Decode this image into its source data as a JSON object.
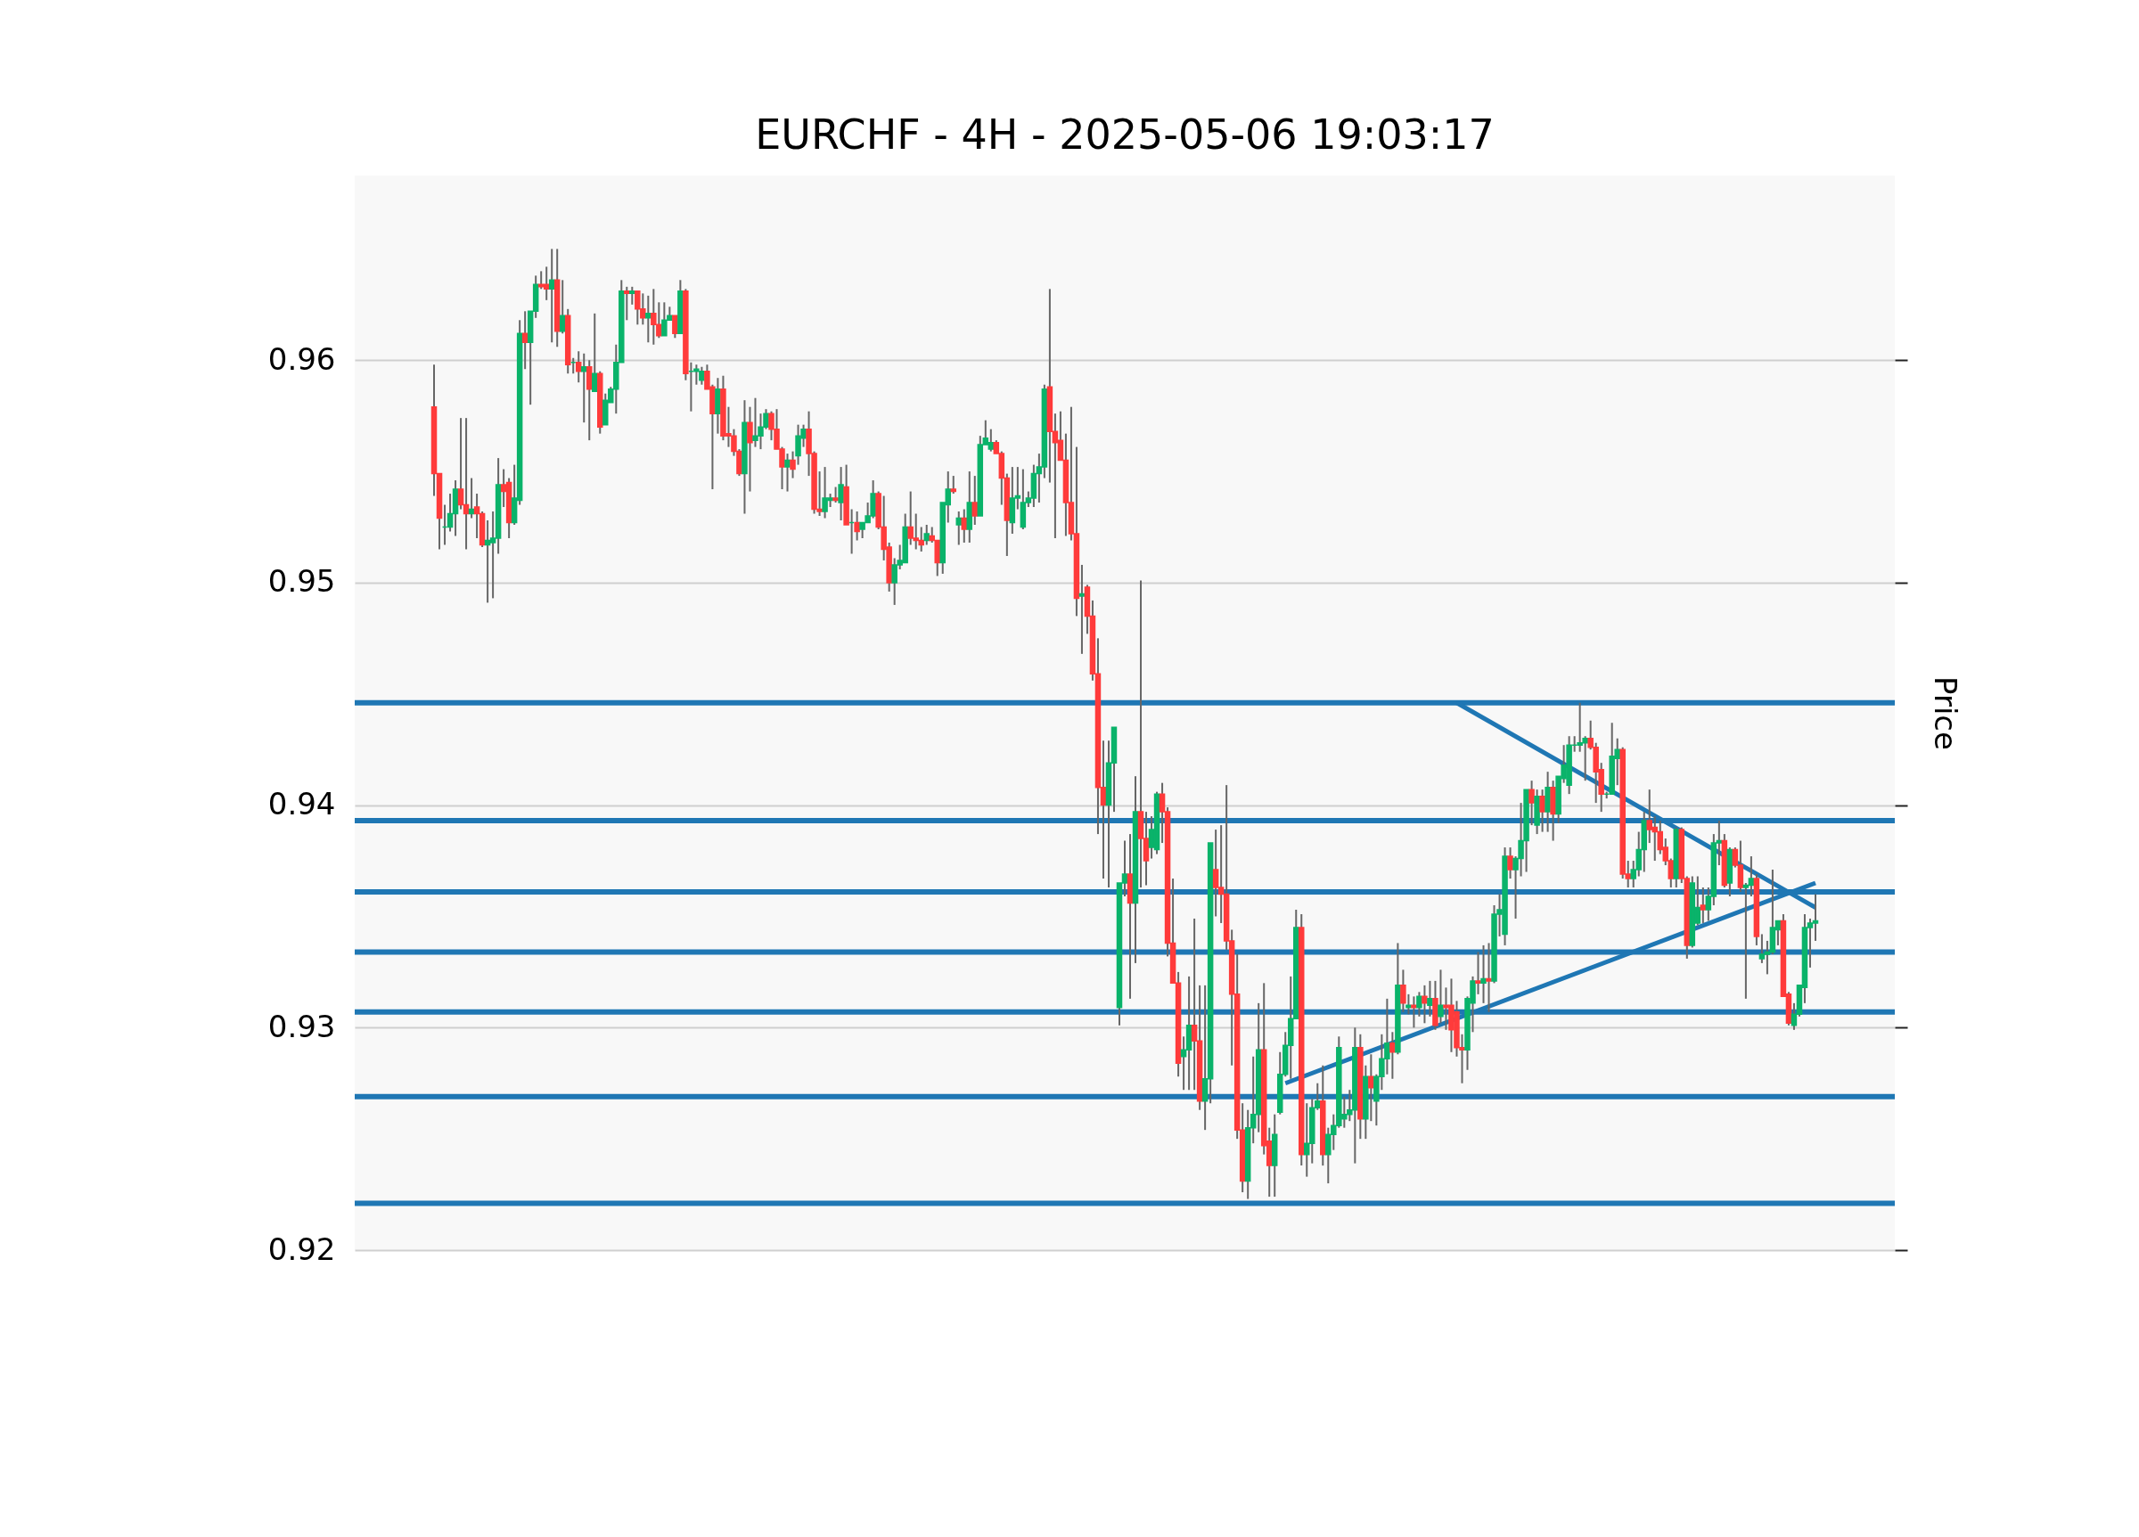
{
  "chart_data": {
    "type": "candlestick",
    "title": "EURCHF - 4H - 2025-05-06 19:03:17",
    "ylabel": "Price",
    "categories": [
      null,
      null,
      null,
      null,
      null,
      null,
      null,
      null,
      null,
      null,
      null,
      null,
      null,
      null,
      null,
      null,
      null,
      null,
      null,
      null,
      null,
      null,
      null,
      null,
      null,
      null,
      null,
      null,
      null,
      null,
      null,
      null,
      null,
      null,
      null,
      null,
      null,
      null,
      null,
      null,
      null,
      null,
      null,
      null,
      null,
      null,
      null,
      null,
      null,
      null,
      null,
      null,
      null,
      null,
      null,
      null,
      null,
      null,
      null,
      null,
      null,
      null,
      null,
      null,
      null,
      null,
      null,
      null,
      null,
      null,
      null,
      null,
      null,
      null,
      null,
      null,
      null,
      null,
      null,
      null,
      null,
      null,
      null,
      null,
      null,
      null,
      null,
      null,
      null,
      null,
      null,
      null,
      null,
      null,
      null,
      null,
      null,
      null,
      null,
      null,
      null,
      null,
      null,
      null,
      null,
      null,
      null,
      null,
      null,
      null,
      null,
      null,
      null,
      null,
      null,
      null,
      null,
      null,
      null,
      null,
      null,
      null,
      null,
      null,
      null,
      null,
      null,
      null,
      null,
      null,
      null,
      null,
      null,
      null,
      null,
      null,
      null,
      null,
      null,
      null,
      null,
      null,
      null,
      null,
      null,
      null,
      null,
      null,
      null,
      null,
      null,
      null,
      null,
      null,
      null,
      null,
      null,
      null,
      null,
      null,
      null,
      null,
      null,
      null,
      null,
      null,
      null,
      null,
      null,
      null,
      null,
      null,
      null,
      null,
      null,
      null,
      null,
      null,
      null,
      null,
      null,
      null,
      null,
      null,
      null,
      null,
      null,
      null,
      null,
      null,
      null,
      null,
      null,
      null,
      null,
      null,
      null,
      null,
      null,
      null,
      null,
      null,
      null,
      null,
      null,
      null,
      null,
      null,
      null,
      null,
      null,
      null,
      null,
      null,
      null,
      null,
      null,
      null,
      null,
      null,
      null,
      null,
      null,
      null,
      null,
      null,
      null,
      null,
      null,
      null,
      null,
      null,
      null,
      null,
      null,
      null,
      null,
      null,
      null,
      null,
      null,
      null,
      null,
      null,
      null,
      null,
      null,
      null,
      null,
      null,
      null,
      null,
      null,
      null,
      null,
      null,
      null,
      null,
      null
    ],
    "ohlc": [
      [
        0.9579,
        0.9598,
        0.9539,
        0.9549
      ],
      [
        0.9549,
        0.9549,
        0.9515,
        0.9529
      ],
      [
        0.9525,
        0.9535,
        0.9517,
        0.9525
      ],
      [
        0.9525,
        0.954,
        0.9523,
        0.9531
      ],
      [
        0.9531,
        0.9546,
        0.9521,
        0.9542
      ],
      [
        0.9542,
        0.9574,
        0.9533,
        0.9535
      ],
      [
        0.9535,
        0.9574,
        0.9515,
        0.9531
      ],
      [
        0.9531,
        0.9547,
        0.9529,
        0.9533
      ],
      [
        0.9534,
        0.954,
        0.952,
        0.9531
      ],
      [
        0.9531,
        0.9532,
        0.9516,
        0.9517
      ],
      [
        0.9517,
        0.9528,
        0.9491,
        0.9519
      ],
      [
        0.9518,
        0.9532,
        0.9493,
        0.952
      ],
      [
        0.952,
        0.9556,
        0.9513,
        0.9544
      ],
      [
        0.9544,
        0.9551,
        0.9534,
        0.9541
      ],
      [
        0.9545,
        0.9547,
        0.952,
        0.9527
      ],
      [
        0.9527,
        0.9553,
        0.9526,
        0.9538
      ],
      [
        0.9537,
        0.9618,
        0.9535,
        0.9612
      ],
      [
        0.9612,
        0.9622,
        0.9596,
        0.9608
      ],
      [
        0.9608,
        0.9622,
        0.958,
        0.9622
      ],
      [
        0.9622,
        0.9638,
        0.9619,
        0.9634
      ],
      [
        0.9634,
        0.964,
        0.9632,
        0.9633
      ],
      [
        0.9634,
        0.9642,
        0.9627,
        0.9632
      ],
      [
        0.9632,
        0.965,
        0.9608,
        0.9636
      ],
      [
        0.9636,
        0.965,
        0.9606,
        0.9613
      ],
      [
        0.9613,
        0.9636,
        0.9612,
        0.962
      ],
      [
        0.962,
        0.9623,
        0.9594,
        0.9598
      ],
      [
        0.9599,
        0.9601,
        0.9594,
        0.9599
      ],
      [
        0.9599,
        0.9604,
        0.959,
        0.9595
      ],
      [
        0.9595,
        0.9603,
        0.9572,
        0.9597
      ],
      [
        0.9597,
        0.96,
        0.9564,
        0.9587
      ],
      [
        0.9586,
        0.9621,
        0.9586,
        0.9594
      ],
      [
        0.9594,
        0.9595,
        0.9567,
        0.957
      ],
      [
        0.9571,
        0.9585,
        0.9571,
        0.9582
      ],
      [
        0.9581,
        0.9588,
        0.9581,
        0.9587
      ],
      [
        0.9587,
        0.9607,
        0.9576,
        0.9599
      ],
      [
        0.9599,
        0.9636,
        0.9599,
        0.9631
      ],
      [
        0.9631,
        0.9633,
        0.9618,
        0.963
      ],
      [
        0.963,
        0.9633,
        0.9625,
        0.9631
      ],
      [
        0.9631,
        0.9631,
        0.9616,
        0.9623
      ],
      [
        0.9623,
        0.963,
        0.9616,
        0.9619
      ],
      [
        0.9619,
        0.9629,
        0.9608,
        0.9621
      ],
      [
        0.9621,
        0.9632,
        0.9607,
        0.9616
      ],
      [
        0.9616,
        0.9626,
        0.961,
        0.9611
      ],
      [
        0.9611,
        0.9626,
        0.9611,
        0.9618
      ],
      [
        0.9618,
        0.9624,
        0.9618,
        0.962
      ],
      [
        0.962,
        0.962,
        0.961,
        0.9612
      ],
      [
        0.9612,
        0.9636,
        0.9612,
        0.9631
      ],
      [
        0.9631,
        0.9632,
        0.9591,
        0.9594
      ],
      [
        0.9595,
        0.9599,
        0.9577,
        0.9595
      ],
      [
        0.9595,
        0.9598,
        0.9589,
        0.9596
      ],
      [
        0.9591,
        0.9597,
        0.9589,
        0.9595
      ],
      [
        0.9595,
        0.9598,
        0.9587,
        0.9587
      ],
      [
        0.9588,
        0.9589,
        0.9542,
        0.9576
      ],
      [
        0.9576,
        0.9592,
        0.9567,
        0.9587
      ],
      [
        0.9587,
        0.9593,
        0.9564,
        0.9566
      ],
      [
        0.9567,
        0.9579,
        0.9561,
        0.9566
      ],
      [
        0.9566,
        0.9569,
        0.9557,
        0.9559
      ],
      [
        0.9559,
        0.956,
        0.9548,
        0.9549
      ],
      [
        0.9549,
        0.9582,
        0.9531,
        0.9572
      ],
      [
        0.9572,
        0.9579,
        0.9541,
        0.9563
      ],
      [
        0.9564,
        0.9583,
        0.9561,
        0.9566
      ],
      [
        0.9566,
        0.9576,
        0.956,
        0.957
      ],
      [
        0.957,
        0.9578,
        0.9569,
        0.9576
      ],
      [
        0.9576,
        0.9577,
        0.9564,
        0.9569
      ],
      [
        0.9569,
        0.9578,
        0.956,
        0.956
      ],
      [
        0.956,
        0.9561,
        0.9542,
        0.9552
      ],
      [
        0.9552,
        0.9558,
        0.9541,
        0.9555
      ],
      [
        0.9555,
        0.9559,
        0.9547,
        0.9551
      ],
      [
        0.9557,
        0.9571,
        0.9553,
        0.9566
      ],
      [
        0.9565,
        0.9571,
        0.9561,
        0.9569
      ],
      [
        0.9569,
        0.9577,
        0.9548,
        0.9558
      ],
      [
        0.9558,
        0.9559,
        0.9531,
        0.9533
      ],
      [
        0.9533,
        0.955,
        0.953,
        0.9532
      ],
      [
        0.9532,
        0.9552,
        0.9529,
        0.9538
      ],
      [
        0.9537,
        0.954,
        0.9534,
        0.9538
      ],
      [
        0.9538,
        0.9543,
        0.9536,
        0.9537
      ],
      [
        0.9536,
        0.9552,
        0.9528,
        0.9544
      ],
      [
        0.9543,
        0.9553,
        0.9526,
        0.9526
      ],
      [
        0.9527,
        0.9533,
        0.9513,
        0.9527
      ],
      [
        0.9527,
        0.9532,
        0.9519,
        0.9523
      ],
      [
        0.9524,
        0.9527,
        0.952,
        0.9527
      ],
      [
        0.9527,
        0.9536,
        0.9527,
        0.953
      ],
      [
        0.953,
        0.9546,
        0.9529,
        0.954
      ],
      [
        0.954,
        0.9541,
        0.9524,
        0.9525
      ],
      [
        0.9525,
        0.9539,
        0.951,
        0.9515
      ],
      [
        0.9516,
        0.9518,
        0.9496,
        0.95
      ],
      [
        0.95,
        0.9511,
        0.949,
        0.9508
      ],
      [
        0.9508,
        0.9517,
        0.9506,
        0.951
      ],
      [
        0.9509,
        0.9531,
        0.9509,
        0.9525
      ],
      [
        0.9525,
        0.9541,
        0.9517,
        0.952
      ],
      [
        0.952,
        0.9531,
        0.9515,
        0.9519
      ],
      [
        0.9519,
        0.9525,
        0.9514,
        0.9517
      ],
      [
        0.9519,
        0.9526,
        0.9517,
        0.9522
      ],
      [
        0.9521,
        0.9525,
        0.9518,
        0.9519
      ],
      [
        0.9519,
        0.9519,
        0.9503,
        0.9509
      ],
      [
        0.9509,
        0.9536,
        0.9504,
        0.9536
      ],
      [
        0.9535,
        0.955,
        0.9527,
        0.9542
      ],
      [
        0.9542,
        0.9548,
        0.954,
        0.9541
      ],
      [
        0.9526,
        0.9532,
        0.9517,
        0.9529
      ],
      [
        0.9529,
        0.9533,
        0.9518,
        0.9524
      ],
      [
        0.9524,
        0.955,
        0.9518,
        0.9536
      ],
      [
        0.9536,
        0.9548,
        0.9526,
        0.953
      ],
      [
        0.953,
        0.9566,
        0.953,
        0.9562
      ],
      [
        0.9562,
        0.9573,
        0.9562,
        0.9565
      ],
      [
        0.956,
        0.9569,
        0.9559,
        0.9563
      ],
      [
        0.9563,
        0.9564,
        0.9558,
        0.9558
      ],
      [
        0.9558,
        0.9559,
        0.9535,
        0.9547
      ],
      [
        0.9547,
        0.9549,
        0.9512,
        0.9528
      ],
      [
        0.9527,
        0.9552,
        0.9522,
        0.9538
      ],
      [
        0.9538,
        0.9552,
        0.9533,
        0.9539
      ],
      [
        0.9525,
        0.9551,
        0.9524,
        0.9536
      ],
      [
        0.9536,
        0.9541,
        0.9534,
        0.9538
      ],
      [
        0.9538,
        0.9553,
        0.9534,
        0.9549
      ],
      [
        0.9549,
        0.9558,
        0.9536,
        0.9552
      ],
      [
        0.9552,
        0.9589,
        0.9547,
        0.9587
      ],
      [
        0.9588,
        0.9632,
        0.9545,
        0.9568
      ],
      [
        0.9568,
        0.9576,
        0.952,
        0.9563
      ],
      [
        0.9564,
        0.9577,
        0.9555,
        0.9555
      ],
      [
        0.9555,
        0.9567,
        0.9521,
        0.9536
      ],
      [
        0.9536,
        0.9579,
        0.9519,
        0.9522
      ],
      [
        0.9522,
        0.9561,
        0.9485,
        0.9493
      ],
      [
        0.9494,
        0.9508,
        0.9468,
        0.9495
      ],
      [
        0.9498,
        0.9499,
        0.9477,
        0.9485
      ],
      [
        0.9485,
        0.9492,
        0.9456,
        0.9459
      ],
      [
        0.9459,
        0.9475,
        0.9387,
        0.9408
      ],
      [
        0.9408,
        0.9429,
        0.9367,
        0.94
      ],
      [
        0.94,
        0.9429,
        0.9363,
        0.9419
      ],
      [
        0.9419,
        0.9435,
        0.9397,
        0.9435
      ],
      [
        0.9309,
        0.9365,
        0.9301,
        0.9365
      ],
      [
        0.9365,
        0.9384,
        0.9359,
        0.9369
      ],
      [
        0.9369,
        0.9387,
        0.9313,
        0.9356
      ],
      [
        0.9356,
        0.9413,
        0.9329,
        0.9397
      ],
      [
        0.9397,
        0.9501,
        0.9363,
        0.9385
      ],
      [
        0.9385,
        0.9397,
        0.9364,
        0.9375
      ],
      [
        0.9381,
        0.9395,
        0.9376,
        0.9389
      ],
      [
        0.938,
        0.9406,
        0.9378,
        0.9405
      ],
      [
        0.9405,
        0.941,
        0.9383,
        0.9397
      ],
      [
        0.9397,
        0.9399,
        0.9332,
        0.9338
      ],
      [
        0.9338,
        0.9367,
        0.932,
        0.932
      ],
      [
        0.932,
        0.9325,
        0.9278,
        0.9284
      ],
      [
        0.9287,
        0.9296,
        0.9272,
        0.929
      ],
      [
        0.929,
        0.9323,
        0.9272,
        0.9301
      ],
      [
        0.9301,
        0.9349,
        0.9272,
        0.9294
      ],
      [
        0.9294,
        0.9319,
        0.9263,
        0.9267
      ],
      [
        0.9267,
        0.9319,
        0.9254,
        0.9277
      ],
      [
        0.9277,
        0.9383,
        0.9266,
        0.9383
      ],
      [
        0.9371,
        0.9389,
        0.935,
        0.9363
      ],
      [
        0.9363,
        0.9391,
        0.9347,
        0.936
      ],
      [
        0.936,
        0.9409,
        0.9335,
        0.9339
      ],
      [
        0.9339,
        0.9344,
        0.9283,
        0.9315
      ],
      [
        0.9315,
        0.9333,
        0.925,
        0.9254
      ],
      [
        0.9254,
        0.9266,
        0.9226,
        0.9231
      ],
      [
        0.9231,
        0.9263,
        0.9223,
        0.9255
      ],
      [
        0.9255,
        0.9287,
        0.9248,
        0.9261
      ],
      [
        0.9261,
        0.9311,
        0.9253,
        0.929
      ],
      [
        0.929,
        0.932,
        0.9243,
        0.9247
      ],
      [
        0.9249,
        0.9255,
        0.9224,
        0.9238
      ],
      [
        0.9238,
        0.9261,
        0.9224,
        0.9252
      ],
      [
        0.9262,
        0.9289,
        0.9261,
        0.9279
      ],
      [
        0.9279,
        0.9298,
        0.9278,
        0.9292
      ],
      [
        0.9292,
        0.9323,
        0.9277,
        0.9304
      ],
      [
        0.9304,
        0.9353,
        0.9304,
        0.9345
      ],
      [
        0.9345,
        0.9351,
        0.9238,
        0.9243
      ],
      [
        0.9243,
        0.9266,
        0.9233,
        0.9248
      ],
      [
        0.9248,
        0.9268,
        0.9239,
        0.9264
      ],
      [
        0.9264,
        0.9275,
        0.9263,
        0.9267
      ],
      [
        0.9267,
        0.9283,
        0.9238,
        0.9243
      ],
      [
        0.9243,
        0.9255,
        0.923,
        0.9252
      ],
      [
        0.9252,
        0.9261,
        0.9245,
        0.9256
      ],
      [
        0.9256,
        0.9296,
        0.9255,
        0.9291
      ],
      [
        0.9259,
        0.9269,
        0.9255,
        0.9261
      ],
      [
        0.9261,
        0.9272,
        0.9258,
        0.9263
      ],
      [
        0.9263,
        0.93,
        0.9239,
        0.9291
      ],
      [
        0.9291,
        0.9297,
        0.925,
        0.9259
      ],
      [
        0.9259,
        0.9283,
        0.925,
        0.9278
      ],
      [
        0.9278,
        0.9288,
        0.9258,
        0.9273
      ],
      [
        0.9267,
        0.9279,
        0.9256,
        0.9278
      ],
      [
        0.9278,
        0.9297,
        0.9272,
        0.9286
      ],
      [
        0.9286,
        0.9313,
        0.9279,
        0.9293
      ],
      [
        0.9293,
        0.9298,
        0.9277,
        0.9289
      ],
      [
        0.9289,
        0.9338,
        0.9288,
        0.9319
      ],
      [
        0.9319,
        0.9326,
        0.9307,
        0.9311
      ],
      [
        0.9309,
        0.9315,
        0.9306,
        0.931
      ],
      [
        0.931,
        0.9314,
        0.93,
        0.9309
      ],
      [
        0.9309,
        0.9316,
        0.9305,
        0.9314
      ],
      [
        0.9314,
        0.9319,
        0.9302,
        0.9311
      ],
      [
        0.931,
        0.9321,
        0.9305,
        0.9313
      ],
      [
        0.9313,
        0.9321,
        0.9299,
        0.9301
      ],
      [
        0.9305,
        0.9326,
        0.9302,
        0.931
      ],
      [
        0.931,
        0.9318,
        0.9299,
        0.9309
      ],
      [
        0.931,
        0.9322,
        0.9289,
        0.9299
      ],
      [
        0.9307,
        0.9312,
        0.9287,
        0.9291
      ],
      [
        0.9291,
        0.9297,
        0.9275,
        0.929
      ],
      [
        0.929,
        0.9314,
        0.9281,
        0.9313
      ],
      [
        0.9311,
        0.9323,
        0.9298,
        0.9321
      ],
      [
        0.9321,
        0.9334,
        0.9315,
        0.932
      ],
      [
        0.932,
        0.9337,
        0.9311,
        0.9322
      ],
      [
        0.9322,
        0.9338,
        0.9307,
        0.9321
      ],
      [
        0.9321,
        0.9355,
        0.932,
        0.9351
      ],
      [
        0.9351,
        0.936,
        0.9341,
        0.9353
      ],
      [
        0.9342,
        0.9381,
        0.9337,
        0.9377
      ],
      [
        0.9377,
        0.9381,
        0.9367,
        0.9371
      ],
      [
        0.9371,
        0.9377,
        0.9349,
        0.9376
      ],
      [
        0.9376,
        0.9401,
        0.9368,
        0.9384
      ],
      [
        0.9384,
        0.9407,
        0.937,
        0.9407
      ],
      [
        0.9407,
        0.9411,
        0.9391,
        0.9401
      ],
      [
        0.9391,
        0.9407,
        0.9387,
        0.9404
      ],
      [
        0.9404,
        0.9407,
        0.9388,
        0.9397
      ],
      [
        0.9397,
        0.9415,
        0.9388,
        0.9408
      ],
      [
        0.9408,
        0.9411,
        0.9384,
        0.9396
      ],
      [
        0.9396,
        0.9413,
        0.9392,
        0.9413
      ],
      [
        0.9412,
        0.9427,
        0.941,
        0.9418
      ],
      [
        0.9409,
        0.9431,
        0.9405,
        0.9427
      ],
      [
        0.9427,
        0.9431,
        0.9424,
        0.9427
      ],
      [
        0.9427,
        0.9446,
        0.9424,
        0.9428
      ],
      [
        0.9428,
        0.9431,
        0.9411,
        0.943
      ],
      [
        0.943,
        0.9438,
        0.9425,
        0.9426
      ],
      [
        0.9426,
        0.9428,
        0.9401,
        0.9415
      ],
      [
        0.9416,
        0.9419,
        0.9397,
        0.9405
      ],
      [
        0.9405,
        0.9406,
        0.9403,
        0.9405
      ],
      [
        0.9405,
        0.9437,
        0.9405,
        0.9422
      ],
      [
        0.9421,
        0.943,
        0.9409,
        0.9425
      ],
      [
        0.9425,
        0.9426,
        0.9367,
        0.9369
      ],
      [
        0.9369,
        0.9375,
        0.9363,
        0.9367
      ],
      [
        0.9367,
        0.9375,
        0.9363,
        0.9371
      ],
      [
        0.9371,
        0.9388,
        0.9368,
        0.938
      ],
      [
        0.938,
        0.9397,
        0.937,
        0.9393
      ],
      [
        0.9393,
        0.9407,
        0.9383,
        0.9389
      ],
      [
        0.939,
        0.9395,
        0.9375,
        0.9388
      ],
      [
        0.9388,
        0.9393,
        0.9378,
        0.938
      ],
      [
        0.9381,
        0.9385,
        0.9373,
        0.9375
      ],
      [
        0.9375,
        0.9376,
        0.9363,
        0.9367
      ],
      [
        0.9367,
        0.939,
        0.9363,
        0.9389
      ],
      [
        0.9389,
        0.939,
        0.9365,
        0.9367
      ],
      [
        0.9367,
        0.9368,
        0.9331,
        0.9337
      ],
      [
        0.9337,
        0.9368,
        0.9336,
        0.9365
      ],
      [
        0.9347,
        0.9368,
        0.9346,
        0.9354
      ],
      [
        0.9355,
        0.9363,
        0.9347,
        0.9353
      ],
      [
        0.9353,
        0.9363,
        0.9348,
        0.9359
      ],
      [
        0.9359,
        0.9387,
        0.9355,
        0.9383
      ],
      [
        0.9383,
        0.9393,
        0.9373,
        0.9384
      ],
      [
        0.9384,
        0.9387,
        0.9363,
        0.9364
      ],
      [
        0.9365,
        0.9381,
        0.9359,
        0.938
      ],
      [
        0.938,
        0.9381,
        0.9372,
        0.9373
      ],
      [
        0.9373,
        0.9384,
        0.9361,
        0.9363
      ],
      [
        0.9363,
        0.9365,
        0.9313,
        0.9364
      ],
      [
        0.9364,
        0.9377,
        0.9359,
        0.9367
      ],
      [
        0.9367,
        0.9369,
        0.9337,
        0.9341
      ],
      [
        0.9331,
        0.9342,
        0.9329,
        0.9333
      ],
      [
        0.9333,
        0.9339,
        0.9324,
        0.9334
      ],
      [
        0.9334,
        0.9371,
        0.9333,
        0.9345
      ],
      [
        0.9344,
        0.9348,
        0.9337,
        0.9348
      ],
      [
        0.9348,
        0.9351,
        0.9314,
        0.9314
      ],
      [
        0.9315,
        0.9316,
        0.9301,
        0.9302
      ],
      [
        0.9301,
        0.9311,
        0.9299,
        0.9306
      ],
      [
        0.9306,
        0.9319,
        0.9305,
        0.9319
      ],
      [
        0.9318,
        0.9351,
        0.9311,
        0.9345
      ],
      [
        0.9345,
        0.9349,
        0.9327,
        0.9347
      ],
      [
        0.9347,
        0.936,
        0.9339,
        0.9348
      ]
    ],
    "colors": [
      "#ff3b3b",
      "#ff3b3b",
      "#0ab36a",
      "#0ab36a",
      "#0ab36a",
      "#ff3b3b",
      "#ff3b3b",
      "#0ab36a",
      "#ff3b3b",
      "#ff3b3b",
      "#0ab36a",
      "#0ab36a",
      "#0ab36a",
      "#ff3b3b",
      "#ff3b3b",
      "#0ab36a",
      "#0ab36a",
      "#ff3b3b",
      "#0ab36a",
      "#0ab36a",
      "#ff3b3b",
      "#ff3b3b",
      "#0ab36a",
      "#ff3b3b",
      "#0ab36a",
      "#ff3b3b",
      "#0ab36a",
      "#ff3b3b",
      "#0ab36a",
      "#ff3b3b",
      "#0ab36a",
      "#ff3b3b",
      "#0ab36a",
      "#0ab36a",
      "#0ab36a",
      "#0ab36a",
      "#ff3b3b",
      "#0ab36a",
      "#ff3b3b",
      "#ff3b3b",
      "#0ab36a",
      "#ff3b3b",
      "#ff3b3b",
      "#0ab36a",
      "#0ab36a",
      "#ff3b3b",
      "#0ab36a",
      "#ff3b3b",
      "#0ab36a",
      "#0ab36a",
      "#0ab36a",
      "#ff3b3b",
      "#ff3b3b",
      "#0ab36a",
      "#ff3b3b",
      "#ff3b3b",
      "#ff3b3b",
      "#ff3b3b",
      "#0ab36a",
      "#ff3b3b",
      "#0ab36a",
      "#0ab36a",
      "#0ab36a",
      "#ff3b3b",
      "#ff3b3b",
      "#ff3b3b",
      "#0ab36a",
      "#ff3b3b",
      "#0ab36a",
      "#0ab36a",
      "#ff3b3b",
      "#ff3b3b",
      "#ff3b3b",
      "#0ab36a",
      "#0ab36a",
      "#ff3b3b",
      "#0ab36a",
      "#ff3b3b",
      "#0ab36a",
      "#ff3b3b",
      "#0ab36a",
      "#0ab36a",
      "#0ab36a",
      "#ff3b3b",
      "#ff3b3b",
      "#ff3b3b",
      "#0ab36a",
      "#0ab36a",
      "#0ab36a",
      "#ff3b3b",
      "#ff3b3b",
      "#ff3b3b",
      "#0ab36a",
      "#ff3b3b",
      "#ff3b3b",
      "#0ab36a",
      "#0ab36a",
      "#ff3b3b",
      "#0ab36a",
      "#ff3b3b",
      "#0ab36a",
      "#ff3b3b",
      "#0ab36a",
      "#0ab36a",
      "#0ab36a",
      "#ff3b3b",
      "#ff3b3b",
      "#ff3b3b",
      "#0ab36a",
      "#0ab36a",
      "#0ab36a",
      "#0ab36a",
      "#0ab36a",
      "#0ab36a",
      "#0ab36a",
      "#ff3b3b",
      "#ff3b3b",
      "#ff3b3b",
      "#ff3b3b",
      "#ff3b3b",
      "#ff3b3b",
      "#0ab36a",
      "#ff3b3b",
      "#ff3b3b",
      "#ff3b3b",
      "#ff3b3b",
      "#0ab36a",
      "#0ab36a",
      "#0ab36a",
      "#0ab36a",
      "#ff3b3b",
      "#0ab36a",
      "#ff3b3b",
      "#ff3b3b",
      "#0ab36a",
      "#0ab36a",
      "#ff3b3b",
      "#ff3b3b",
      "#ff3b3b",
      "#ff3b3b",
      "#0ab36a",
      "#0ab36a",
      "#ff3b3b",
      "#ff3b3b",
      "#0ab36a",
      "#0ab36a",
      "#ff3b3b",
      "#ff3b3b",
      "#ff3b3b",
      "#ff3b3b",
      "#ff3b3b",
      "#ff3b3b",
      "#0ab36a",
      "#0ab36a",
      "#0ab36a",
      "#ff3b3b",
      "#ff3b3b",
      "#0ab36a",
      "#0ab36a",
      "#0ab36a",
      "#0ab36a",
      "#0ab36a",
      "#ff3b3b",
      "#0ab36a",
      "#0ab36a",
      "#0ab36a",
      "#ff3b3b",
      "#0ab36a",
      "#0ab36a",
      "#0ab36a",
      "#0ab36a",
      "#0ab36a",
      "#0ab36a",
      "#ff3b3b",
      "#0ab36a",
      "#ff3b3b",
      "#0ab36a",
      "#0ab36a",
      "#0ab36a",
      "#ff3b3b",
      "#0ab36a",
      "#ff3b3b",
      "#0ab36a",
      "#ff3b3b",
      "#0ab36a",
      "#ff3b3b",
      "#0ab36a",
      "#ff3b3b",
      "#0ab36a",
      "#ff3b3b",
      "#ff3b3b",
      "#ff3b3b",
      "#ff3b3b",
      "#0ab36a",
      "#0ab36a",
      "#ff3b3b",
      "#0ab36a",
      "#ff3b3b",
      "#0ab36a",
      "#0ab36a",
      "#0ab36a",
      "#ff3b3b",
      "#0ab36a",
      "#0ab36a",
      "#0ab36a",
      "#ff3b3b",
      "#0ab36a",
      "#ff3b3b",
      "#0ab36a",
      "#ff3b3b",
      "#0ab36a",
      "#0ab36a",
      "#0ab36a",
      "#0ab36a",
      "#0ab36a",
      "#0ab36a",
      "#ff3b3b",
      "#ff3b3b",
      "#ff3b3b",
      "#0ab36a",
      "#0ab36a",
      "#0ab36a",
      "#ff3b3b",
      "#ff3b3b",
      "#0ab36a",
      "#0ab36a",
      "#0ab36a",
      "#ff3b3b",
      "#ff3b3b",
      "#ff3b3b",
      "#ff3b3b",
      "#ff3b3b",
      "#0ab36a",
      "#ff3b3b",
      "#ff3b3b",
      "#0ab36a",
      "#0ab36a",
      "#ff3b3b",
      "#0ab36a",
      "#0ab36a",
      "#0ab36a",
      "#ff3b3b",
      "#0ab36a",
      "#ff3b3b",
      "#ff3b3b",
      "#0ab36a",
      "#0ab36a",
      "#ff3b3b",
      "#0ab36a",
      "#0ab36a",
      "#0ab36a",
      "#0ab36a",
      "#ff3b3b",
      "#ff3b3b",
      "#0ab36a",
      "#0ab36a",
      "#0ab36a",
      "#0ab36a",
      "#0ab36a"
    ],
    "series": [
      {
        "type": "line",
        "color": "#1f77b4",
        "values": [
          null,
          null,
          null,
          null,
          null,
          null,
          null,
          null,
          null,
          null,
          null,
          null,
          null,
          null,
          null,
          null,
          null,
          null,
          null,
          null,
          null,
          null,
          null,
          null,
          null,
          null,
          null,
          null,
          null,
          null,
          null,
          null,
          null,
          null,
          null,
          null,
          null,
          null,
          null,
          null,
          null,
          null,
          null,
          null,
          null,
          null,
          null,
          null,
          null,
          null,
          null,
          null,
          null,
          null,
          null,
          null,
          null,
          null,
          null,
          null,
          null,
          null,
          null,
          null,
          null,
          null,
          null,
          null,
          null,
          null,
          null,
          null,
          null,
          null,
          null,
          null,
          null,
          null,
          null,
          null,
          null,
          null,
          null,
          null,
          null,
          null,
          null,
          null,
          null,
          null,
          null,
          null,
          null,
          null,
          null,
          null,
          null,
          null,
          null,
          null,
          null,
          null,
          null,
          null,
          null,
          null,
          null,
          null,
          null,
          null,
          null,
          null,
          null,
          null,
          null,
          null,
          null,
          null,
          null,
          null,
          null,
          null,
          null,
          null,
          null,
          null,
          null,
          null,
          null,
          null,
          null,
          null,
          null,
          null,
          null,
          null,
          null,
          null,
          null,
          null,
          null,
          null,
          null,
          null,
          null,
          null,
          null,
          null,
          null,
          null,
          null,
          null,
          null,
          null,
          null,
          null,
          null,
          null,
          null,
          null,
          null,
          null,
          null,
          null,
          null,
          null,
          null,
          null,
          null,
          null,
          null,
          null,
          null,
          null,
          null,
          null,
          null,
          null,
          null,
          null,
          null,
          null,
          null,
          null,
          null,
          null,
          null,
          null,
          null,
          null,
          null,
          0.9446,
          null,
          null,
          null,
          null,
          null,
          null,
          null,
          null,
          null,
          null,
          null,
          null,
          null,
          null,
          null,
          null,
          null,
          null,
          null,
          null,
          null,
          null,
          null,
          null,
          null,
          null,
          null,
          null,
          null,
          null,
          null,
          null,
          null,
          null,
          null,
          null,
          null,
          null,
          null,
          null,
          null,
          null,
          null,
          null,
          null,
          null,
          null,
          null,
          null,
          null,
          null,
          null,
          null,
          null,
          null,
          null,
          null,
          null,
          null,
          null,
          null,
          null,
          null,
          null,
          null,
          null,
          0.9354
        ]
      },
      {
        "type": "line",
        "color": "#1f77b4",
        "values": [
          null,
          null,
          null,
          null,
          null,
          null,
          null,
          null,
          null,
          null,
          null,
          null,
          null,
          null,
          null,
          null,
          null,
          null,
          null,
          null,
          null,
          null,
          null,
          null,
          null,
          null,
          null,
          null,
          null,
          null,
          null,
          null,
          null,
          null,
          null,
          null,
          null,
          null,
          null,
          null,
          null,
          null,
          null,
          null,
          null,
          null,
          null,
          null,
          null,
          null,
          null,
          null,
          null,
          null,
          null,
          null,
          null,
          null,
          null,
          null,
          null,
          null,
          null,
          null,
          null,
          null,
          null,
          null,
          null,
          null,
          null,
          null,
          null,
          null,
          null,
          null,
          null,
          null,
          null,
          null,
          null,
          null,
          null,
          null,
          null,
          null,
          null,
          null,
          null,
          null,
          null,
          null,
          null,
          null,
          null,
          null,
          null,
          null,
          null,
          null,
          null,
          null,
          null,
          null,
          null,
          null,
          null,
          null,
          null,
          null,
          null,
          null,
          null,
          null,
          null,
          null,
          null,
          null,
          null,
          null,
          null,
          null,
          null,
          null,
          null,
          null,
          null,
          null,
          null,
          null,
          null,
          null,
          null,
          null,
          null,
          null,
          null,
          null,
          null,
          null,
          null,
          null,
          null,
          null,
          null,
          null,
          null,
          null,
          null,
          null,
          null,
          null,
          null,
          null,
          null,
          null,
          null,
          null,
          null,
          0.9275,
          null,
          null,
          null,
          null,
          null,
          null,
          null,
          null,
          null,
          null,
          null,
          null,
          null,
          null,
          null,
          null,
          null,
          null,
          null,
          null,
          null,
          null,
          null,
          null,
          null,
          null,
          null,
          null,
          null,
          null,
          null,
          null,
          null,
          null,
          null,
          null,
          null,
          null,
          null,
          null,
          null,
          null,
          null,
          null,
          null,
          null,
          null,
          null,
          null,
          null,
          null,
          null,
          null,
          null,
          null,
          null,
          null,
          null,
          null,
          null,
          null,
          null,
          null,
          null,
          null,
          null,
          null,
          null,
          null,
          null,
          null,
          null,
          null,
          null,
          null,
          null,
          null,
          null,
          null,
          null,
          null,
          null,
          null,
          null,
          null,
          null,
          null,
          null,
          null,
          null,
          null,
          null,
          null,
          null,
          null,
          null,
          null,
          null,
          0.9365
        ]
      }
    ],
    "ref_lines": [
      {
        "axis": "y",
        "value": 0.9446,
        "color": "#1f77b4"
      },
      {
        "axis": "y",
        "value": 0.9393,
        "color": "#1f77b4"
      },
      {
        "axis": "y",
        "value": 0.9361,
        "color": "#1f77b4"
      },
      {
        "axis": "y",
        "value": 0.9334,
        "color": "#1f77b4"
      },
      {
        "axis": "y",
        "value": 0.9307,
        "color": "#1f77b4"
      },
      {
        "axis": "y",
        "value": 0.9269,
        "color": "#1f77b4"
      },
      {
        "axis": "y",
        "value": 0.9221,
        "color": "#1f77b4"
      }
    ],
    "ylim": [
      0.92,
      0.9683
    ],
    "yticks": [
      0.92,
      0.93,
      0.94,
      0.95,
      0.96
    ],
    "tick_labels": "y",
    "grid": "y",
    "line_style": "solid"
  }
}
